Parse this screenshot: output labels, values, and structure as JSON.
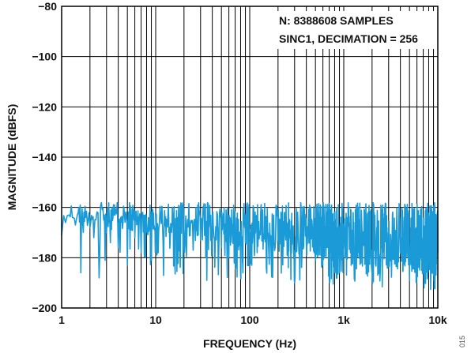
{
  "chart_data": {
    "type": "line",
    "xlabel": "FREQUENCY (Hz)",
    "ylabel": "MAGNITUDE (dBFS)",
    "xscale": "log",
    "xlim": [
      1,
      10000
    ],
    "ylim": [
      -200,
      -80
    ],
    "xticks": [
      {
        "value": 1,
        "label": "1"
      },
      {
        "value": 10,
        "label": "10"
      },
      {
        "value": 100,
        "label": "100"
      },
      {
        "value": 1000,
        "label": "1k"
      },
      {
        "value": 10000,
        "label": "10k"
      }
    ],
    "yticks": [
      {
        "value": -80,
        "label": "−80"
      },
      {
        "value": -100,
        "label": "−100"
      },
      {
        "value": -120,
        "label": "−120"
      },
      {
        "value": -140,
        "label": "−140"
      },
      {
        "value": -160,
        "label": "−160"
      },
      {
        "value": -180,
        "label": "−180"
      },
      {
        "value": -200,
        "label": "−200"
      }
    ],
    "grid": true,
    "annotations": [
      "N: 8388608 SAMPLES",
      "SINC1, DECIMATION = 256"
    ],
    "corner_label": "015",
    "colors": {
      "series": "#1a9ad6",
      "grid": "#000000",
      "axis": "#000000"
    },
    "series": [
      {
        "x": [
          1,
          1.1,
          1.2,
          1.3,
          1.4,
          1.5,
          1.6,
          1.7,
          1.8,
          2,
          2.2,
          2.5,
          2.8,
          3,
          3.3,
          3.6,
          4,
          4.5,
          5,
          5.5,
          6,
          7,
          8,
          9,
          10,
          12,
          14,
          16,
          18,
          20,
          25,
          30,
          35,
          40,
          50,
          60,
          70,
          80,
          90,
          100,
          120,
          150,
          200,
          250,
          300,
          400,
          500,
          600,
          700,
          800,
          900,
          1000,
          1200,
          1500,
          2000,
          2500,
          3000,
          4000,
          5000,
          6000,
          7000,
          8000,
          9000,
          10000
        ],
        "y": [
          -171,
          -166,
          -163,
          -164,
          -167,
          -162,
          -186,
          -170,
          -164,
          -168,
          -172,
          -188,
          -165,
          -170,
          -174,
          -163,
          -176,
          -166,
          -183,
          -169,
          -172,
          -178,
          -167,
          -181,
          -170,
          -175,
          -168,
          -184,
          -172,
          -169,
          -177,
          -173,
          -189,
          -171,
          -176,
          -180,
          -172,
          -187,
          -174,
          -170,
          -178,
          -184,
          -173,
          -179,
          -190,
          -175,
          -181,
          -177,
          -188,
          -174,
          -180,
          -176,
          -183,
          -179,
          -186,
          -175,
          -182,
          -178,
          -189,
          -176,
          -183,
          -180,
          -187,
          -178
        ]
      }
    ]
  }
}
